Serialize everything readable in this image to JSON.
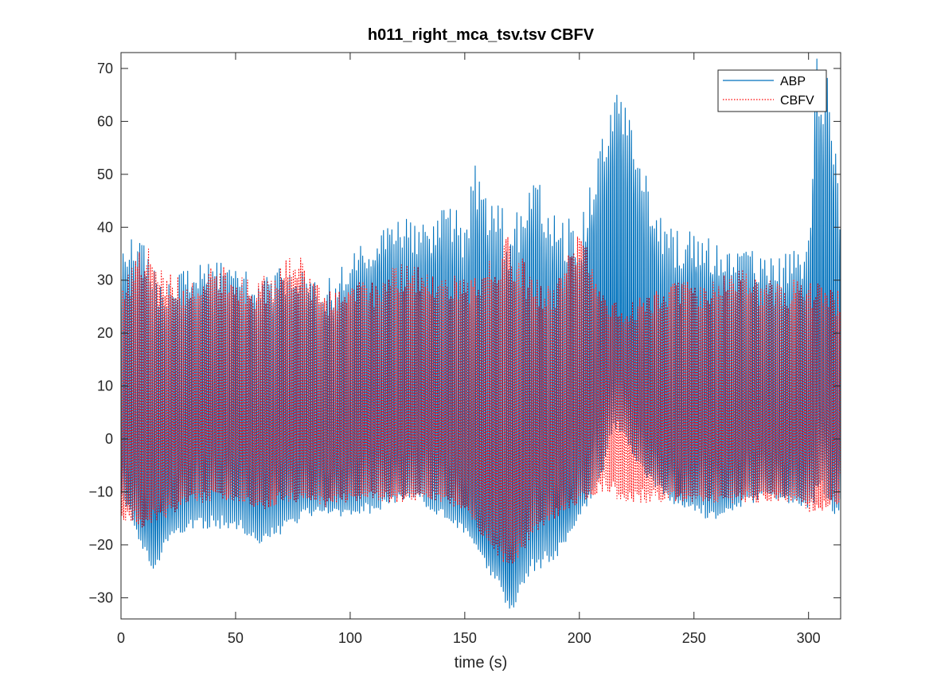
{
  "chart_data": {
    "type": "line",
    "title": "h011_right_mca_tsv.tsv CBFV",
    "xlabel": "time (s)",
    "ylabel": "",
    "xlim": [
      0,
      314
    ],
    "ylim": [
      -34,
      73
    ],
    "xticks": [
      0,
      50,
      100,
      150,
      200,
      250,
      300
    ],
    "yticks": [
      -30,
      -20,
      -10,
      0,
      10,
      20,
      30,
      40,
      50,
      60,
      70
    ],
    "grid": false,
    "legend_position": "top-right",
    "series": [
      {
        "name": "ABP",
        "color": "#0072BD",
        "style": "solid",
        "sample_rate_hz": 1.1,
        "baseline": [
          [
            0,
            -3
          ],
          [
            10,
            -10
          ],
          [
            15,
            -13
          ],
          [
            25,
            -5
          ],
          [
            35,
            -2
          ],
          [
            50,
            -3
          ],
          [
            60,
            -6
          ],
          [
            70,
            -3
          ],
          [
            80,
            -4
          ],
          [
            90,
            -6
          ],
          [
            100,
            -4
          ],
          [
            110,
            0
          ],
          [
            120,
            -3
          ],
          [
            130,
            0
          ],
          [
            140,
            -2
          ],
          [
            150,
            -8
          ],
          [
            160,
            -16
          ],
          [
            170,
            -20
          ],
          [
            180,
            -8
          ],
          [
            190,
            -8
          ],
          [
            195,
            -10
          ],
          [
            205,
            0
          ],
          [
            212,
            12
          ],
          [
            218,
            14
          ],
          [
            225,
            5
          ],
          [
            235,
            -2
          ],
          [
            245,
            -6
          ],
          [
            255,
            -1
          ],
          [
            265,
            -5
          ],
          [
            280,
            0
          ],
          [
            290,
            -4
          ],
          [
            300,
            -3
          ],
          [
            305,
            8
          ],
          [
            314,
            -4
          ]
        ],
        "envelope_upper": [
          [
            0,
            38
          ],
          [
            10,
            38
          ],
          [
            15,
            32
          ],
          [
            25,
            32
          ],
          [
            35,
            34
          ],
          [
            50,
            33
          ],
          [
            60,
            30
          ],
          [
            70,
            33
          ],
          [
            80,
            32
          ],
          [
            90,
            30
          ],
          [
            100,
            35
          ],
          [
            110,
            40
          ],
          [
            115,
            44
          ],
          [
            125,
            42
          ],
          [
            135,
            42
          ],
          [
            142,
            45
          ],
          [
            150,
            42
          ],
          [
            155,
            54
          ],
          [
            160,
            47
          ],
          [
            165,
            45
          ],
          [
            170,
            40
          ],
          [
            180,
            53
          ],
          [
            185,
            44
          ],
          [
            195,
            42
          ],
          [
            200,
            40
          ],
          [
            205,
            50
          ],
          [
            212,
            60
          ],
          [
            218,
            68
          ],
          [
            225,
            55
          ],
          [
            235,
            42
          ],
          [
            245,
            39
          ],
          [
            250,
            40
          ],
          [
            260,
            37
          ],
          [
            270,
            36
          ],
          [
            280,
            35
          ],
          [
            290,
            35
          ],
          [
            300,
            38
          ],
          [
            303,
            73
          ],
          [
            308,
            70
          ],
          [
            314,
            45
          ]
        ],
        "envelope_lower": [
          [
            0,
            -10
          ],
          [
            5,
            -16
          ],
          [
            10,
            -22
          ],
          [
            15,
            -25
          ],
          [
            20,
            -20
          ],
          [
            30,
            -17
          ],
          [
            40,
            -17
          ],
          [
            50,
            -17
          ],
          [
            60,
            -20
          ],
          [
            70,
            -18
          ],
          [
            80,
            -15
          ],
          [
            90,
            -14
          ],
          [
            100,
            -15
          ],
          [
            110,
            -14
          ],
          [
            120,
            -12
          ],
          [
            130,
            -12
          ],
          [
            140,
            -15
          ],
          [
            150,
            -18
          ],
          [
            160,
            -25
          ],
          [
            165,
            -28
          ],
          [
            170,
            -34
          ],
          [
            175,
            -28
          ],
          [
            180,
            -25
          ],
          [
            190,
            -23
          ],
          [
            200,
            -15
          ],
          [
            205,
            -12
          ],
          [
            210,
            -8
          ],
          [
            215,
            2
          ],
          [
            220,
            0
          ],
          [
            225,
            -5
          ],
          [
            230,
            -8
          ],
          [
            240,
            -12
          ],
          [
            250,
            -14
          ],
          [
            260,
            -16
          ],
          [
            270,
            -13
          ],
          [
            280,
            -12
          ],
          [
            290,
            -12
          ],
          [
            300,
            -14
          ],
          [
            305,
            -10
          ],
          [
            314,
            -16
          ]
        ]
      },
      {
        "name": "CBFV",
        "color": "#FF0000",
        "style": "dotted",
        "sample_rate_hz": 1.25,
        "baseline": [
          [
            0,
            0
          ],
          [
            10,
            0
          ],
          [
            20,
            0
          ],
          [
            30,
            -2
          ],
          [
            40,
            2
          ],
          [
            50,
            0
          ],
          [
            60,
            -2
          ],
          [
            70,
            0
          ],
          [
            80,
            0
          ],
          [
            90,
            -1
          ],
          [
            100,
            -1
          ],
          [
            110,
            0
          ],
          [
            120,
            0
          ],
          [
            130,
            0
          ],
          [
            140,
            0
          ],
          [
            150,
            -2
          ],
          [
            160,
            -8
          ],
          [
            170,
            -10
          ],
          [
            180,
            -5
          ],
          [
            190,
            -3
          ],
          [
            200,
            2
          ],
          [
            210,
            5
          ],
          [
            220,
            6
          ],
          [
            230,
            2
          ],
          [
            240,
            0
          ],
          [
            250,
            0
          ],
          [
            260,
            -2
          ],
          [
            270,
            0
          ],
          [
            280,
            0
          ],
          [
            290,
            0
          ],
          [
            300,
            0
          ],
          [
            314,
            0
          ]
        ],
        "envelope_upper": [
          [
            0,
            28
          ],
          [
            5,
            33
          ],
          [
            10,
            37
          ],
          [
            20,
            32
          ],
          [
            30,
            30
          ],
          [
            40,
            34
          ],
          [
            50,
            32
          ],
          [
            60,
            30
          ],
          [
            70,
            33
          ],
          [
            78,
            36
          ],
          [
            85,
            30
          ],
          [
            90,
            28
          ],
          [
            100,
            30
          ],
          [
            110,
            30
          ],
          [
            120,
            33
          ],
          [
            130,
            33
          ],
          [
            140,
            32
          ],
          [
            150,
            30
          ],
          [
            160,
            34
          ],
          [
            170,
            39
          ],
          [
            180,
            30
          ],
          [
            190,
            30
          ],
          [
            200,
            40
          ],
          [
            210,
            28
          ],
          [
            220,
            25
          ],
          [
            230,
            28
          ],
          [
            240,
            30
          ],
          [
            250,
            30
          ],
          [
            260,
            30
          ],
          [
            270,
            33
          ],
          [
            280,
            30
          ],
          [
            290,
            30
          ],
          [
            300,
            30
          ],
          [
            314,
            28
          ]
        ],
        "envelope_lower": [
          [
            0,
            -15
          ],
          [
            10,
            -17
          ],
          [
            20,
            -15
          ],
          [
            30,
            -12
          ],
          [
            40,
            -12
          ],
          [
            50,
            -12
          ],
          [
            60,
            -14
          ],
          [
            70,
            -12
          ],
          [
            80,
            -12
          ],
          [
            90,
            -13
          ],
          [
            100,
            -12
          ],
          [
            110,
            -12
          ],
          [
            120,
            -12
          ],
          [
            130,
            -12
          ],
          [
            140,
            -12
          ],
          [
            150,
            -14
          ],
          [
            160,
            -20
          ],
          [
            170,
            -25
          ],
          [
            180,
            -18
          ],
          [
            190,
            -15
          ],
          [
            200,
            -12
          ],
          [
            210,
            -10
          ],
          [
            220,
            -12
          ],
          [
            230,
            -12
          ],
          [
            240,
            -12
          ],
          [
            250,
            -12
          ],
          [
            260,
            -12
          ],
          [
            270,
            -12
          ],
          [
            280,
            -12
          ],
          [
            290,
            -12
          ],
          [
            300,
            -14
          ],
          [
            305,
            -14
          ],
          [
            314,
            -12
          ]
        ]
      }
    ]
  }
}
